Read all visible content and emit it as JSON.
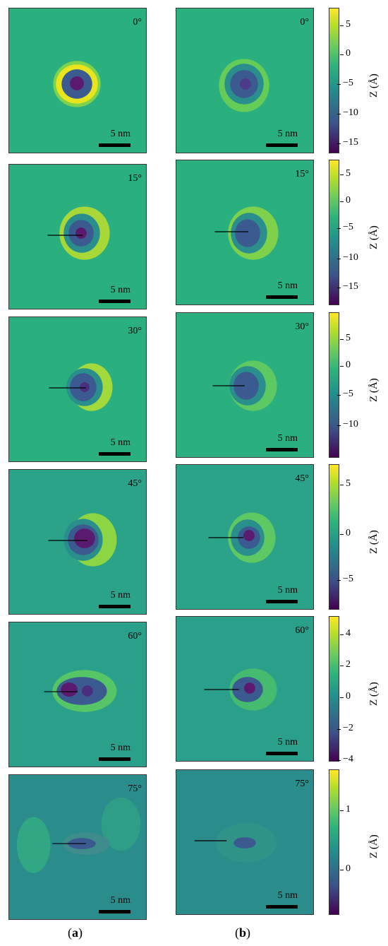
{
  "scale_label": "5 nm",
  "zlabel": "Z (Å)",
  "captions": {
    "a": "a",
    "b": "b"
  },
  "rows": [
    {
      "angle": "0°",
      "ticks": [
        "5",
        "0",
        "−5",
        "−10",
        "−15"
      ]
    },
    {
      "angle": "15°",
      "ticks": [
        "5",
        "0",
        "−5",
        "−10",
        "−15"
      ]
    },
    {
      "angle": "30°",
      "ticks": [
        "5",
        "0",
        "−5",
        "−10"
      ]
    },
    {
      "angle": "45°",
      "ticks": [
        "5",
        "0",
        "−5"
      ]
    },
    {
      "angle": "60°",
      "ticks": [
        "4",
        "2",
        "0",
        "−2",
        "−4"
      ]
    },
    {
      "angle": "75°",
      "ticks": [
        "1",
        "0"
      ]
    }
  ],
  "colors": {
    "background": "#2ab07f",
    "ring": "#c8e020",
    "pit": "#3b5a8f",
    "core": "#5a1b6e"
  }
}
